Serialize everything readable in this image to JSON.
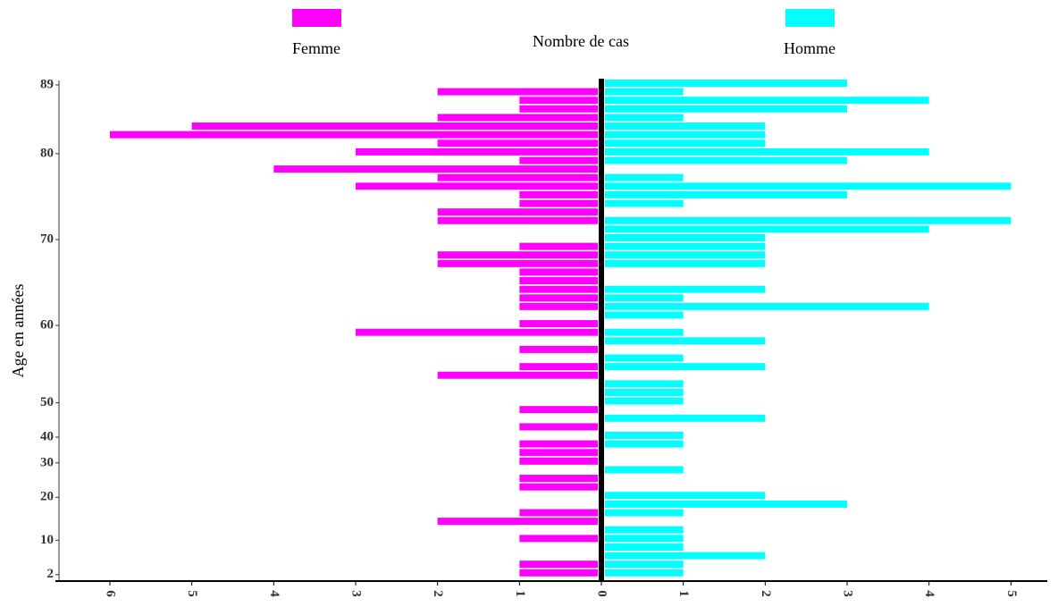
{
  "chart_data": {
    "type": "pyramid",
    "title": "Nombre de cas",
    "ylabel": "Age en années",
    "categories": [
      "89",
      null,
      null,
      null,
      null,
      null,
      null,
      null,
      "80",
      null,
      null,
      null,
      null,
      null,
      null,
      null,
      null,
      null,
      "70",
      null,
      null,
      null,
      null,
      null,
      null,
      null,
      null,
      null,
      "60",
      null,
      null,
      null,
      null,
      null,
      null,
      null,
      null,
      "50",
      null,
      null,
      null,
      "40",
      null,
      null,
      "30",
      null,
      null,
      null,
      "20",
      null,
      null,
      null,
      null,
      "10",
      null,
      null,
      null,
      "2"
    ],
    "series": [
      {
        "name": "Femme",
        "color": "#ff00ff",
        "side": "left",
        "values": [
          0,
          2,
          1,
          1,
          2,
          5,
          6,
          2,
          3,
          1,
          4,
          2,
          3,
          1,
          1,
          2,
          2,
          0,
          0,
          1,
          2,
          2,
          1,
          1,
          1,
          1,
          1,
          0,
          1,
          3,
          0,
          1,
          0,
          1,
          2,
          0,
          0,
          0,
          1,
          0,
          1,
          0,
          1,
          1,
          1,
          0,
          1,
          1,
          0,
          0,
          1,
          2,
          0,
          1,
          0,
          0,
          1,
          1
        ]
      },
      {
        "name": "Homme",
        "color": "#00ffff",
        "side": "right",
        "values": [
          3,
          1,
          4,
          3,
          1,
          2,
          2,
          2,
          4,
          3,
          0,
          1,
          5,
          3,
          1,
          0,
          5,
          4,
          2,
          2,
          2,
          2,
          0,
          0,
          2,
          1,
          4,
          1,
          0,
          1,
          2,
          0,
          1,
          2,
          0,
          1,
          1,
          1,
          0,
          2,
          0,
          1,
          1,
          0,
          0,
          1,
          0,
          0,
          2,
          3,
          1,
          0,
          1,
          1,
          1,
          2,
          1,
          1
        ]
      }
    ],
    "xlim": [
      -6.3,
      5.42
    ],
    "xticks": [
      {
        "value": -6,
        "label": "6"
      },
      {
        "value": -5,
        "label": "5"
      },
      {
        "value": -4,
        "label": "4"
      },
      {
        "value": -3,
        "label": "3"
      },
      {
        "value": -2,
        "label": "2"
      },
      {
        "value": -1,
        "label": "1"
      },
      0,
      1,
      2,
      3,
      4,
      5
    ]
  }
}
